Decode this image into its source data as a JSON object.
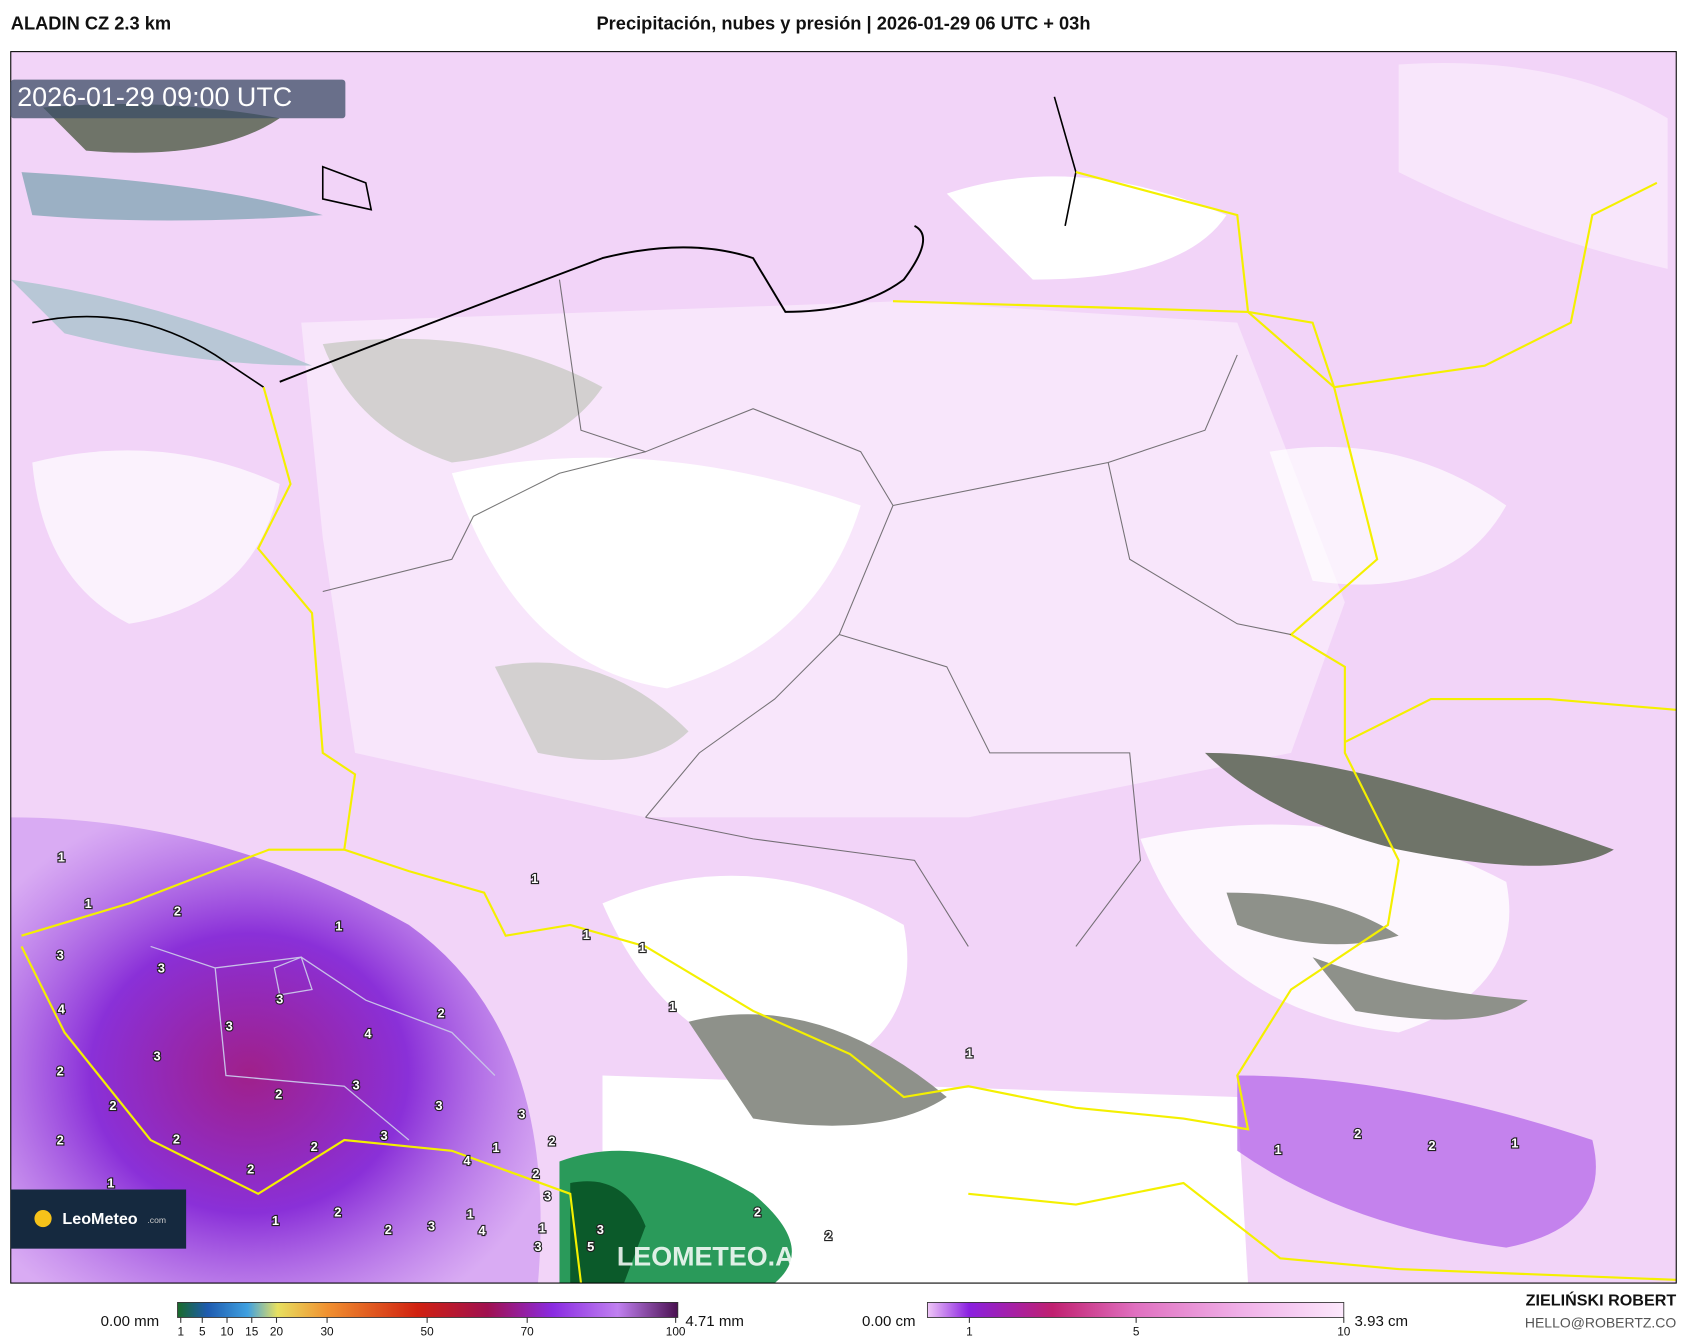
{
  "header": {
    "model": "ALADIN CZ 2.3 km",
    "title": "Precipitación, nubes y presión | 2026-01-29 06 UTC + 03h"
  },
  "map": {
    "timestamp": "2026-01-29 09:00 UTC",
    "watermark": "LEOMETEO.AR/MODEL/ALADIN-CZ",
    "logo": "LeoMeteo",
    "logo_domain": ".com",
    "labels": [
      1,
      1,
      2,
      1,
      1,
      3,
      3,
      3,
      4,
      2,
      3,
      4,
      3,
      2,
      2,
      3,
      3,
      2,
      3,
      2,
      3,
      2,
      2,
      2,
      1,
      4,
      2,
      2,
      1,
      3,
      1,
      1,
      2,
      3,
      2,
      4,
      1,
      3,
      5,
      3,
      1,
      1,
      1,
      1,
      1,
      2,
      2,
      1,
      2,
      2
    ]
  },
  "legend_precip": {
    "min_label": "0.00 mm",
    "max_label": "4.71 mm",
    "ticks": [
      1,
      5,
      10,
      15,
      20,
      30,
      50,
      70,
      100
    ]
  },
  "legend_snow": {
    "min_label": "0.00 cm",
    "max_label": "3.93 cm",
    "ticks": [
      1,
      5,
      10
    ]
  },
  "credit": {
    "author": "ZIELIŃSKI ROBERT",
    "email": "HELLO@ROBERTZ.CO"
  }
}
